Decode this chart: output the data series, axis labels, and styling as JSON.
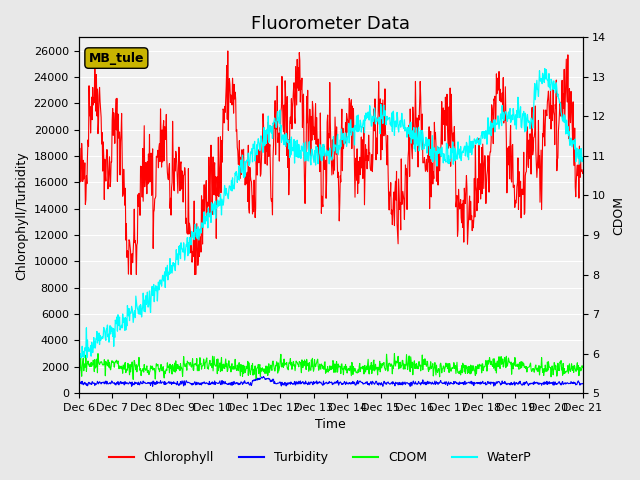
{
  "title": "Fluorometer Data",
  "xlabel": "Time",
  "ylabel_left": "Chlorophyll/Turbidity",
  "ylabel_right": "CDOM",
  "annotation_text": "MB_tule",
  "annotation_color": "#c8b400",
  "ylim_left": [
    0,
    27000
  ],
  "ylim_right": [
    5.0,
    14.0
  ],
  "yticks_left": [
    0,
    2000,
    4000,
    6000,
    8000,
    10000,
    12000,
    14000,
    16000,
    18000,
    20000,
    22000,
    24000,
    26000
  ],
  "yticks_right": [
    5.0,
    6.0,
    7.0,
    8.0,
    9.0,
    10.0,
    11.0,
    12.0,
    13.0,
    14.0
  ],
  "xtick_labels": [
    "Dec 6",
    "Dec 7",
    "Dec 8",
    "Dec 9",
    "Dec 10",
    "Dec 11",
    "Dec 12",
    "Dec 13",
    "Dec 14",
    "Dec 15",
    "Dec 16",
    "Dec 17",
    "Dec 18",
    "Dec 19",
    "Dec 20",
    "Dec 21"
  ],
  "n_points": 960,
  "background_color": "#e8e8e8",
  "plot_bg_color": "#f0f0f0",
  "chlorophyll_color": "red",
  "turbidity_color": "blue",
  "cdom_color": "lime",
  "waterp_color": "cyan",
  "legend_labels": [
    "Chlorophyll",
    "Turbidity",
    "CDOM",
    "WaterP"
  ],
  "title_fontsize": 13,
  "axis_fontsize": 9,
  "tick_fontsize": 8
}
